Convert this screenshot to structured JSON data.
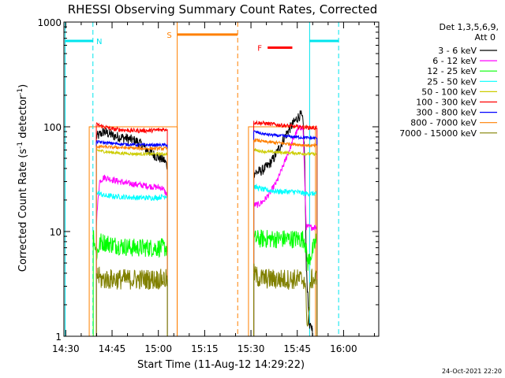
{
  "chart_data": {
    "type": "line",
    "title": "RHESSI Observing Summary Count Rates, Corrected",
    "xlabel": "Start Time (11-Aug-12 14:29:22)",
    "ylabel_main": "Corrected Count Rate (s",
    "ylabel_sup1": "-1",
    "ylabel_mid": " detector",
    "ylabel_sup2": "-1",
    "ylabel_end": ")",
    "y_scale": "log",
    "ylim": [
      1,
      1000
    ],
    "xlim_minutes": [
      0,
      102
    ],
    "x_ticks": [
      {
        "label": "14:30",
        "min": 0.6
      },
      {
        "label": "14:45",
        "min": 15.6
      },
      {
        "label": "15:00",
        "min": 30.6
      },
      {
        "label": "15:15",
        "min": 45.6
      },
      {
        "label": "15:30",
        "min": 60.6
      },
      {
        "label": "15:45",
        "min": 75.6
      },
      {
        "label": "16:00",
        "min": 90.6
      }
    ],
    "y_ticks": [
      {
        "label": "1",
        "value": 1
      },
      {
        "label": "10",
        "value": 10
      },
      {
        "label": "100",
        "value": 100
      },
      {
        "label": "1000",
        "value": 1000
      }
    ],
    "legend_header": [
      "Det 1,3,5,6,9,",
      "Att 0"
    ],
    "legend_placement": "right",
    "date_stamp": "24-Oct-2021 22:20",
    "series": [
      {
        "name": "3 - 6 keV",
        "color": "#000000",
        "seg1": [
          [
            10.5,
            80
          ],
          [
            13,
            90
          ],
          [
            16,
            82
          ],
          [
            20,
            78
          ],
          [
            24,
            72
          ],
          [
            27,
            60
          ],
          [
            30,
            52
          ],
          [
            32.5,
            48
          ],
          [
            33.5,
            42
          ]
        ],
        "seg2": [
          [
            61.5,
            36
          ],
          [
            64,
            38
          ],
          [
            66,
            42
          ],
          [
            68,
            50
          ],
          [
            70,
            65
          ],
          [
            72,
            85
          ],
          [
            74,
            105
          ],
          [
            76,
            125
          ],
          [
            76.8,
            130
          ],
          [
            77.5,
            110
          ],
          [
            78,
            50
          ],
          [
            78.5,
            5
          ],
          [
            79.5,
            1.2
          ],
          [
            80.5,
            1.2
          ]
        ]
      },
      {
        "name": "6 - 12 keV",
        "color": "#ff00ff",
        "seg1": [
          [
            10.5,
            12
          ],
          [
            11.5,
            30
          ],
          [
            13,
            33
          ],
          [
            16,
            31
          ],
          [
            20,
            29
          ],
          [
            24,
            28
          ],
          [
            28,
            27
          ],
          [
            32,
            26
          ],
          [
            33.5,
            22
          ]
        ],
        "seg2": [
          [
            61.5,
            18
          ],
          [
            63,
            18
          ],
          [
            65,
            20
          ],
          [
            67,
            24
          ],
          [
            69,
            30
          ],
          [
            71,
            42
          ],
          [
            73,
            60
          ],
          [
            75,
            85
          ],
          [
            76.5,
            100
          ],
          [
            77.5,
            95
          ],
          [
            78.5,
            11
          ],
          [
            82,
            11
          ]
        ]
      },
      {
        "name": "12 - 25 keV",
        "color": "#00ff00",
        "seg1": [
          [
            9.5,
            10
          ],
          [
            10.5,
            6
          ],
          [
            12,
            8
          ],
          [
            16,
            7.5
          ],
          [
            22,
            7
          ],
          [
            28,
            7
          ],
          [
            33.5,
            7
          ]
        ],
        "seg2": [
          [
            61.5,
            8.5
          ],
          [
            65,
            8.5
          ],
          [
            70,
            8.5
          ],
          [
            75,
            8.5
          ],
          [
            78,
            8.5
          ],
          [
            79,
            5
          ],
          [
            82,
            8.5
          ]
        ]
      },
      {
        "name": "25 - 50 keV",
        "color": "#00ffff",
        "seg1": [
          [
            10.5,
            24
          ],
          [
            13,
            22
          ],
          [
            18,
            21.5
          ],
          [
            24,
            21
          ],
          [
            30,
            21
          ],
          [
            33.5,
            22
          ]
        ],
        "seg2": [
          [
            61.5,
            27
          ],
          [
            63,
            26
          ],
          [
            65,
            25
          ],
          [
            70,
            24
          ],
          [
            75,
            24
          ],
          [
            78,
            23
          ],
          [
            80,
            23
          ],
          [
            82,
            23
          ]
        ]
      },
      {
        "name": "50 - 100 keV",
        "color": "#cccc00",
        "seg1": [
          [
            10.5,
            60
          ],
          [
            13,
            58
          ],
          [
            18,
            56
          ],
          [
            24,
            55
          ],
          [
            30,
            55
          ],
          [
            33.5,
            55
          ]
        ],
        "seg2": [
          [
            61.5,
            60
          ],
          [
            65,
            58
          ],
          [
            70,
            57
          ],
          [
            75,
            56
          ],
          [
            80,
            55
          ],
          [
            82,
            55
          ]
        ]
      },
      {
        "name": "100 - 300 keV",
        "color": "#ff0000",
        "seg1": [
          [
            10.5,
            105
          ],
          [
            13,
            100
          ],
          [
            16,
            95
          ],
          [
            22,
            92
          ],
          [
            28,
            92
          ],
          [
            33.5,
            95
          ]
        ],
        "seg2": [
          [
            61.5,
            110
          ],
          [
            65,
            108
          ],
          [
            70,
            104
          ],
          [
            75,
            100
          ],
          [
            80,
            98
          ],
          [
            82,
            98
          ]
        ]
      },
      {
        "name": "300 - 800 keV",
        "color": "#0000ff",
        "seg1": [
          [
            10.5,
            72
          ],
          [
            14,
            70
          ],
          [
            20,
            68
          ],
          [
            26,
            67
          ],
          [
            33.5,
            67
          ]
        ],
        "seg2": [
          [
            61.5,
            90
          ],
          [
            65,
            85
          ],
          [
            70,
            82
          ],
          [
            75,
            80
          ],
          [
            80,
            78
          ],
          [
            82,
            78
          ]
        ]
      },
      {
        "name": "800 - 7000 keV",
        "color": "#ff8000",
        "seg1": [
          [
            10.5,
            65
          ],
          [
            14,
            64
          ],
          [
            20,
            63
          ],
          [
            26,
            62
          ],
          [
            33.5,
            62
          ]
        ],
        "seg2": [
          [
            61.5,
            75
          ],
          [
            65,
            72
          ],
          [
            70,
            70
          ],
          [
            75,
            68
          ],
          [
            80,
            66
          ],
          [
            82,
            66
          ]
        ]
      },
      {
        "name": "7000 - 15000 keV",
        "color": "#808000",
        "seg1": [
          [
            10.5,
            4
          ],
          [
            12,
            3.5
          ],
          [
            18,
            3.5
          ],
          [
            24,
            3.5
          ],
          [
            30,
            3.5
          ],
          [
            33.5,
            3.5
          ]
        ],
        "seg2": [
          [
            61.5,
            4
          ],
          [
            63,
            3.6
          ],
          [
            68,
            3.5
          ],
          [
            74,
            3.5
          ],
          [
            78,
            3.5
          ],
          [
            79,
            1.2
          ],
          [
            80,
            3.5
          ],
          [
            82,
            3.5
          ]
        ]
      }
    ],
    "annotations": [
      {
        "label": "N",
        "color": "#00e5ee",
        "bar": [
          0.4,
          9.4
        ],
        "level": 660
      },
      {
        "label": "S",
        "color": "#ff8000",
        "bar": [
          36.7,
          56.3
        ],
        "level": 760
      },
      {
        "label": "F",
        "color": "#ff0000",
        "bar": [
          66,
          74
        ],
        "level": 570
      }
    ],
    "night_bar2": {
      "color": "#00e5ee",
      "bar": [
        79.6,
        89
      ],
      "level": 660
    },
    "vlines": [
      {
        "min": 0.4,
        "color": "#00e5ee",
        "style": "solid"
      },
      {
        "min": 9.4,
        "color": "#00e5ee",
        "style": "dash"
      },
      {
        "min": 36.7,
        "color": "#ff8000",
        "style": "solid"
      },
      {
        "min": 56.3,
        "color": "#ff8000",
        "style": "dash"
      },
      {
        "min": 79.6,
        "color": "#00e5ee",
        "style": "solid"
      },
      {
        "min": 89,
        "color": "#00e5ee",
        "style": "dash"
      }
    ],
    "orange_box": [
      [
        8.2,
        36.7
      ],
      [
        59.8,
        81.5
      ]
    ],
    "grid": false
  }
}
